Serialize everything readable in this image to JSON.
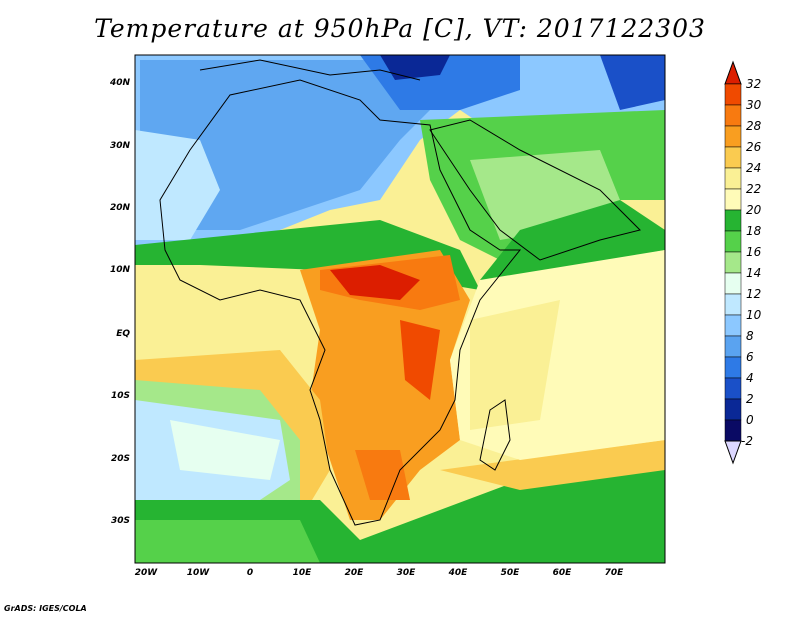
{
  "title": "Temperature at 950hPa [C], VT: 2017122303",
  "credit": "GrADS: IGES/COLA",
  "map": {
    "lat_labels": [
      "40N",
      "30N",
      "20N",
      "10N",
      "EQ",
      "10S",
      "20S",
      "30S"
    ],
    "lon_labels": [
      "20W",
      "10W",
      "0",
      "10E",
      "20E",
      "30E",
      "40E",
      "50E",
      "60E",
      "70E"
    ],
    "extent": {
      "lon_min": -21,
      "lon_max": 80,
      "lat_min": -36,
      "lat_max": 45
    }
  },
  "colorbar": {
    "labels": [
      "32",
      "30",
      "28",
      "26",
      "24",
      "22",
      "20",
      "18",
      "16",
      "14",
      "12",
      "10",
      "8",
      "6",
      "4",
      "2",
      "0",
      "-2"
    ],
    "colors": [
      "#dc1e00",
      "#f04a00",
      "#f87a10",
      "#f99e20",
      "#facb50",
      "#faf095",
      "#fffbb8",
      "#26b432",
      "#55d14a",
      "#a5e88a",
      "#e6fff0",
      "#bfe8ff",
      "#8cc8ff",
      "#5aa3f0",
      "#2e7ae6",
      "#1a50c8",
      "#0a2896",
      "#0a0a64",
      "#dcd7ff"
    ]
  }
}
